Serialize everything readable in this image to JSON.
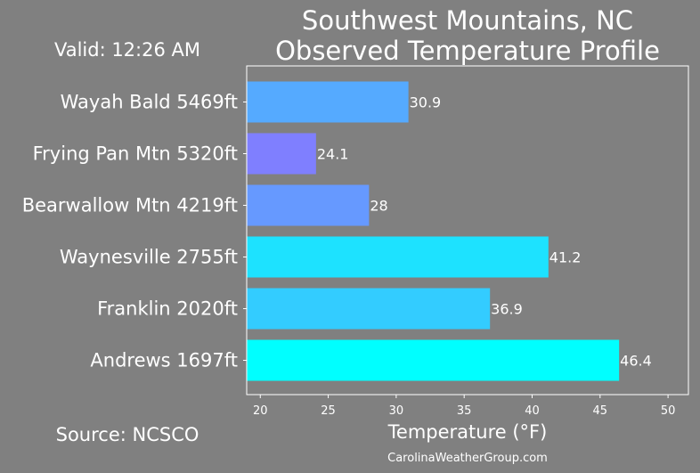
{
  "header": {
    "valid_time": "Valid: 12:26 AM",
    "source": "Source: NCSCO",
    "credit": "CarolinaWeatherGroup.com"
  },
  "chart_data": {
    "type": "bar",
    "orientation": "horizontal",
    "title_line1": "Southwest Mountains, NC",
    "title_line2": "Observed Temperature Profile",
    "xlabel": "Temperature (°F)",
    "ylabel": "",
    "xlim": [
      19,
      51.5
    ],
    "xticks": [
      20,
      25,
      30,
      35,
      40,
      45,
      50
    ],
    "grid": false,
    "categories": [
      "Wayah Bald 5469ft",
      "Frying Pan Mtn 5320ft",
      "Bearwallow Mtn 4219ft",
      "Waynesville 2755ft",
      "Franklin 2020ft",
      "Andrews 1697ft"
    ],
    "values": [
      30.9,
      24.1,
      28,
      41.2,
      36.9,
      46.4
    ],
    "value_labels": [
      "30.9",
      "24.1",
      "28",
      "41.2",
      "36.9",
      "46.4"
    ],
    "bar_colors": [
      "#55aaff",
      "#7f7fff",
      "#6699ff",
      "#1de2ff",
      "#33ccff",
      "#00ffff"
    ],
    "background_color": "#808080",
    "axes_edge_color": "#ffffff"
  }
}
